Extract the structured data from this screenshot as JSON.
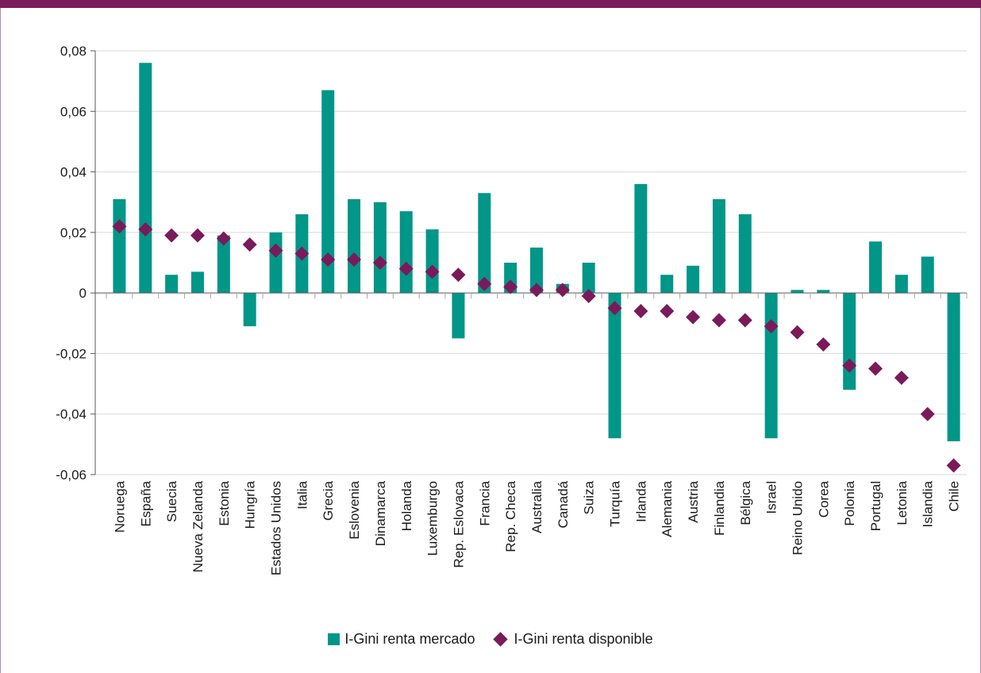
{
  "colors": {
    "bar": "#009688",
    "marker": "#7a1a5a",
    "topbar": "#7a1a5a",
    "grid": "#d9d9d9"
  },
  "legend": {
    "bar_label": "I-Gini renta mercado",
    "marker_label": "I-Gini renta disponible"
  },
  "chart_data": {
    "type": "bar",
    "ylim": [
      -0.06,
      0.08
    ],
    "yticks": [
      -0.06,
      -0.04,
      -0.02,
      0,
      0.02,
      0.04,
      0.06,
      0.08
    ],
    "ytick_labels": [
      "-0,06",
      "-0,04",
      "-0,02",
      "0",
      "0,02",
      "0,04",
      "0,06",
      "0,08"
    ],
    "grid": true,
    "legend_position": "bottom",
    "categories": [
      "Noruega",
      "España",
      "Suecia",
      "Nueva Zelanda",
      "Estonia",
      "Hungría",
      "Estados Unidos",
      "Italia",
      "Grecia",
      "Eslovenia",
      "Dinamarca",
      "Holanda",
      "Luxemburgo",
      "Rep. Eslovaca",
      "Francia",
      "Rep. Checa",
      "Australia",
      "Canadá",
      "Suiza",
      "Turquía",
      "Irlanda",
      "Alemania",
      "Austria",
      "Finlandia",
      "Bélgica",
      "Israel",
      "Reino Unido",
      "Corea",
      "Polonia",
      "Portugal",
      "Letonia",
      "Islandia",
      "Chile"
    ],
    "series": [
      {
        "name": "I-Gini renta mercado",
        "kind": "bar",
        "values": [
          0.031,
          0.076,
          0.006,
          0.007,
          0.019,
          -0.011,
          0.02,
          0.026,
          0.067,
          0.031,
          0.03,
          0.027,
          0.021,
          -0.015,
          0.033,
          0.01,
          0.015,
          0.003,
          0.01,
          -0.048,
          0.036,
          0.006,
          0.009,
          0.031,
          0.026,
          -0.048,
          0.001,
          0.001,
          -0.032,
          0.017,
          0.006,
          0.012,
          -0.049
        ]
      },
      {
        "name": "I-Gini renta disponible",
        "kind": "marker",
        "values": [
          0.022,
          0.021,
          0.019,
          0.019,
          0.018,
          0.016,
          0.014,
          0.013,
          0.011,
          0.011,
          0.01,
          0.008,
          0.007,
          0.006,
          0.003,
          0.002,
          0.001,
          0.001,
          -0.001,
          -0.005,
          -0.006,
          -0.006,
          -0.008,
          -0.009,
          -0.009,
          -0.011,
          -0.013,
          -0.017,
          -0.024,
          -0.025,
          -0.028,
          -0.04,
          -0.057
        ]
      }
    ]
  }
}
